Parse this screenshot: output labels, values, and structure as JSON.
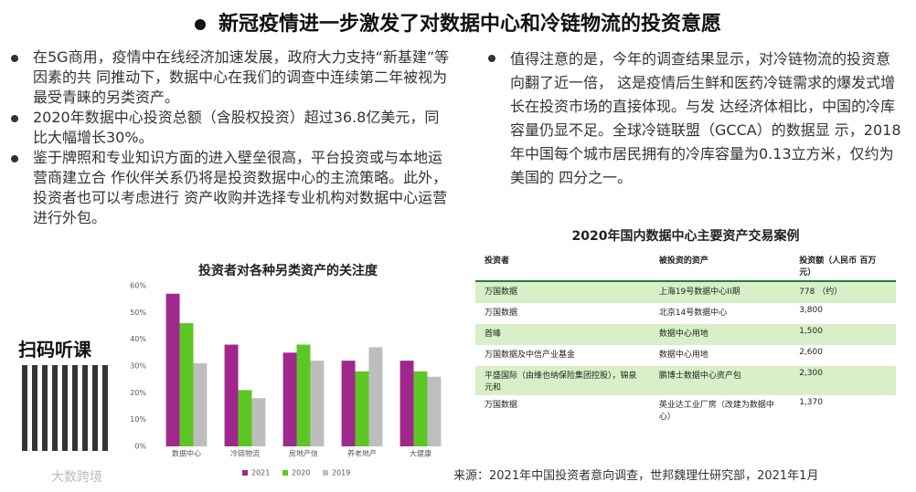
{
  "header": {
    "title": "新冠疫情进一步激发了对数据中心和冷链物流的投资意愿"
  },
  "left_bullets": [
    "在5G商用，疫情中在线经济加速发展，政府大力支持“新基建”等因素的共 同推动下，数据中心在我们的调查中连续第二年被视为最受青睐的另类资产。",
    "2020年数据中心投资总额（含股权投资）超过36.8亿美元，同比大幅增长30%。",
    "鉴于牌照和专业知识方面的进入壁垒很高，平台投资或与本地运营商建立合 作伙伴关系仍将是投资数据中心的主流策略。此外，投资者也可以考虑进行 资产收购并选择专业机构对数据中心运营进行外包。"
  ],
  "right_paragraph": "值得注意的是，今年的调查结果显示，对冷链物流的投资意向翻了近一倍， 这是疫情后生鲜和医药冷链需求的爆发式增长在投资市场的直接体现。与发 达经济体相比，中国的冷库容量仍显不足。全球冷链联盟（GCCA）的数据显 示，2018年中国每个城市居民拥有的冷库容量为0.13立方米，仅约为美国的 四分之一。",
  "chart_data": {
    "type": "bar",
    "title": "投资者对各种另类资产的关注度",
    "categories": [
      "数据中心",
      "冷链物流",
      "房地产信",
      "养老地产",
      "大健康"
    ],
    "series": [
      {
        "name": "2021",
        "color": "#a0288c",
        "values": [
          57,
          38,
          35,
          32,
          32
        ]
      },
      {
        "name": "2020",
        "color": "#5cc623",
        "values": [
          46,
          21,
          38,
          28,
          28
        ]
      },
      {
        "name": "2019",
        "color": "#bdbdbd",
        "values": [
          31,
          18,
          32,
          37,
          26
        ]
      }
    ],
    "ylim": [
      0,
      60
    ],
    "yticks": [
      {
        "value": 0,
        "label": "0%"
      },
      {
        "value": 10,
        "label": "10%"
      },
      {
        "value": 20,
        "label": "20%"
      },
      {
        "value": 30,
        "label": "30%"
      },
      {
        "value": 40,
        "label": "40%"
      },
      {
        "value": 50,
        "label": "50%"
      },
      {
        "value": 60,
        "label": "60%"
      }
    ]
  },
  "table": {
    "title": "2020年国内数据中心主要资产交易案例",
    "header": [
      "投资者",
      "被投资的资产",
      "投资额（人民币 百万元）"
    ],
    "rows": [
      [
        "万国数据",
        "上海19号数据中心II期",
        "778 （约）"
      ],
      [
        "万国数据",
        "北京14号数据中心",
        "3,800"
      ],
      [
        "首峰",
        "数据中心用地",
        "1,500"
      ],
      [
        "万国数据及中信产业基金",
        "数据中心用地",
        "2,600"
      ],
      [
        "平盛国际（由维也纳保险集团控股），锦泉元和",
        "鹏博士数据中心资产包",
        "2,300"
      ],
      [
        "万国数据",
        "英业达工业厂房（改建为数据中心）",
        "1,370"
      ]
    ]
  },
  "qr_label": "扫码听课",
  "logo": "大数跨境",
  "source": "来源：2021年中国投资者意向调查，世邦魏理仕研究部，2021年1月"
}
